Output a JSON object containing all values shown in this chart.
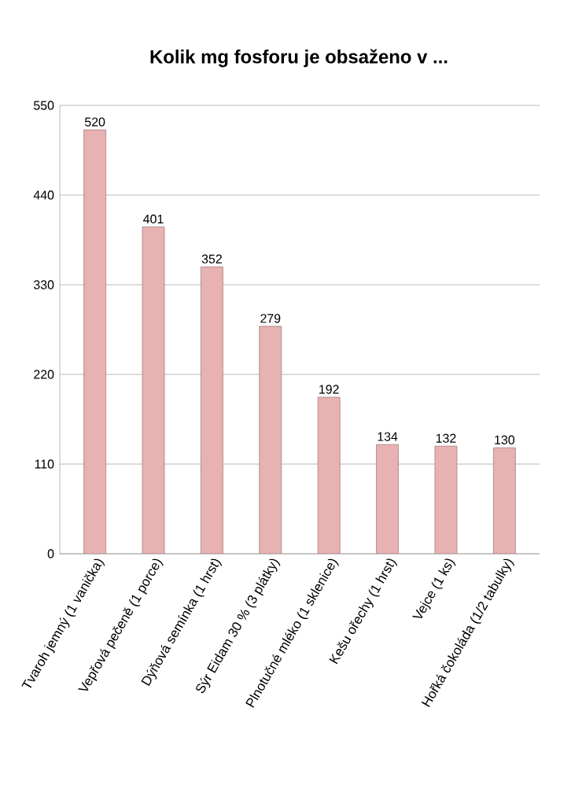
{
  "chart_data": {
    "type": "bar",
    "title": "Kolik mg fosforu je obsaženo v ...",
    "categories": [
      "Tvaroh jemný (1 vanička)",
      "Vepřová pečeně (1 porce)",
      "Dýňová semínka (1 hrst)",
      "Sýr Eidam 30 % (3 plátky)",
      "Plnotučné mléko (1 sklenice)",
      "Kešu ořechy (1 hrst)",
      "Vejce (1 ks)",
      "Hořká čokoláda (1/2 tabulky)"
    ],
    "values": [
      520,
      401,
      352,
      279,
      192,
      134,
      132,
      130
    ],
    "color": "#e8b2b2",
    "ylim": [
      0,
      550
    ],
    "yticks": [
      0,
      110,
      220,
      330,
      440,
      550
    ],
    "grid": "y",
    "data_labels": true
  }
}
